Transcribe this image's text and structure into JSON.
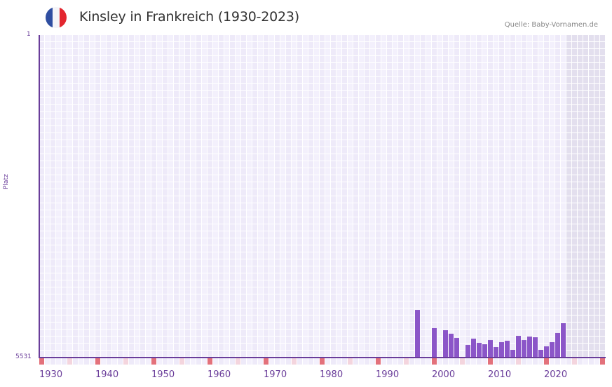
{
  "header": {
    "title": "Kinsley in Frankreich (1930-2023)",
    "source": "Quelle: Baby-Vornamen.de",
    "flag": {
      "country": "France",
      "colors": [
        "#2f4ea1",
        "#f4f4f8",
        "#e3262f"
      ]
    }
  },
  "colors": {
    "bar": "#8b56c8",
    "axis": "#6a3d9a",
    "grid_cell_a": "#eeeaf9",
    "grid_cell_b": "#f3f0fc",
    "future_cell": "#e3dfee",
    "decade_marker": "#e3717b",
    "half_decade_marker": "#f4d5de",
    "label": "#6a3d9a"
  },
  "chart_data": {
    "type": "bar",
    "title": "Kinsley in Frankreich (1930-2023)",
    "xlabel": "",
    "ylabel": "Platz",
    "y_inverted": true,
    "ylim": [
      1,
      5531
    ],
    "xlim": [
      1930,
      2030
    ],
    "grid": true,
    "shaded_future_from": 2024,
    "x_tick_labels": [
      "1930",
      "1940",
      "1950",
      "1960",
      "1970",
      "1980",
      "1990",
      "2000",
      "2010",
      "2020"
    ],
    "y_tick_labels": [
      "1",
      "5531"
    ],
    "categories": [
      1997,
      2000,
      2002,
      2003,
      2004,
      2006,
      2007,
      2008,
      2009,
      2010,
      2011,
      2012,
      2013,
      2014,
      2015,
      2016,
      2017,
      2018,
      2019,
      2020,
      2021,
      2022,
      2023
    ],
    "series": [
      {
        "name": "Platz",
        "values": [
          4714,
          5026,
          5062,
          5122,
          5195,
          5315,
          5207,
          5279,
          5303,
          5231,
          5351,
          5267,
          5243,
          5399,
          5159,
          5231,
          5171,
          5183,
          5399,
          5339,
          5267,
          5110,
          4942
        ]
      }
    ]
  },
  "axis": {
    "y_title": "Platz",
    "y_top": "1",
    "y_bottom": "5531"
  }
}
